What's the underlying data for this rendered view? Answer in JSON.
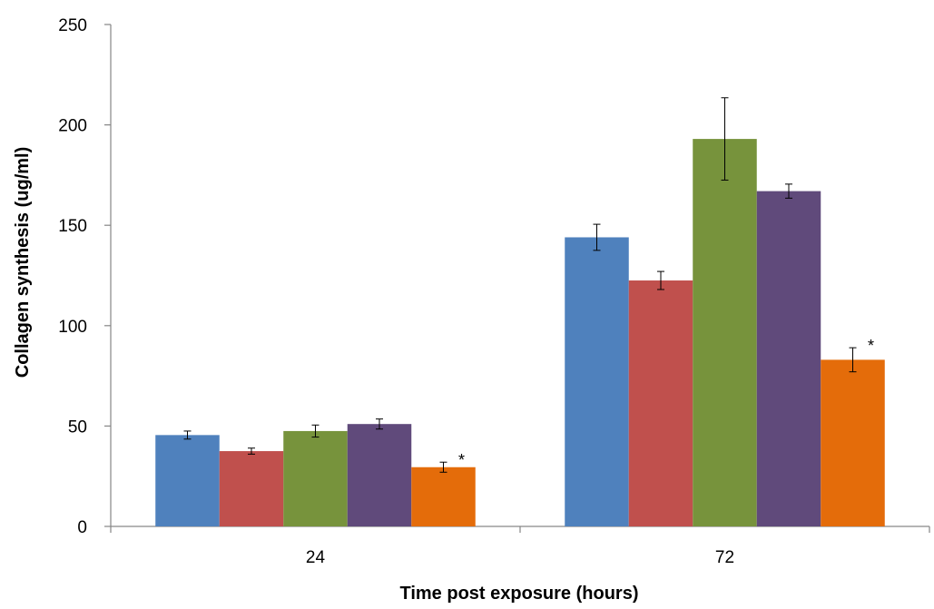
{
  "chart_data": {
    "type": "bar",
    "categories": [
      "24",
      "72"
    ],
    "series": [
      {
        "color": "#4F81BD",
        "values": [
          45.5,
          144
        ],
        "errors": [
          2,
          6.5
        ]
      },
      {
        "color": "#C0504D",
        "values": [
          37.5,
          122.5
        ],
        "errors": [
          1.5,
          4.5
        ]
      },
      {
        "color": "#77933C",
        "values": [
          47.5,
          193
        ],
        "errors": [
          3,
          20.5
        ]
      },
      {
        "color": "#604A7B",
        "values": [
          51,
          167
        ],
        "errors": [
          2.5,
          3.5
        ]
      },
      {
        "color": "#E46C0A",
        "values": [
          29.5,
          83
        ],
        "errors": [
          2.5,
          6
        ],
        "annotations": [
          "*",
          "*"
        ]
      }
    ],
    "xlabel": "Time post exposure (hours)",
    "ylabel": "Collagen synthesis (ug/ml)",
    "ylim": [
      0,
      250
    ],
    "yticks": [
      "0",
      "50",
      "100",
      "150",
      "200",
      "250"
    ],
    "grid": false,
    "legend": "none"
  }
}
